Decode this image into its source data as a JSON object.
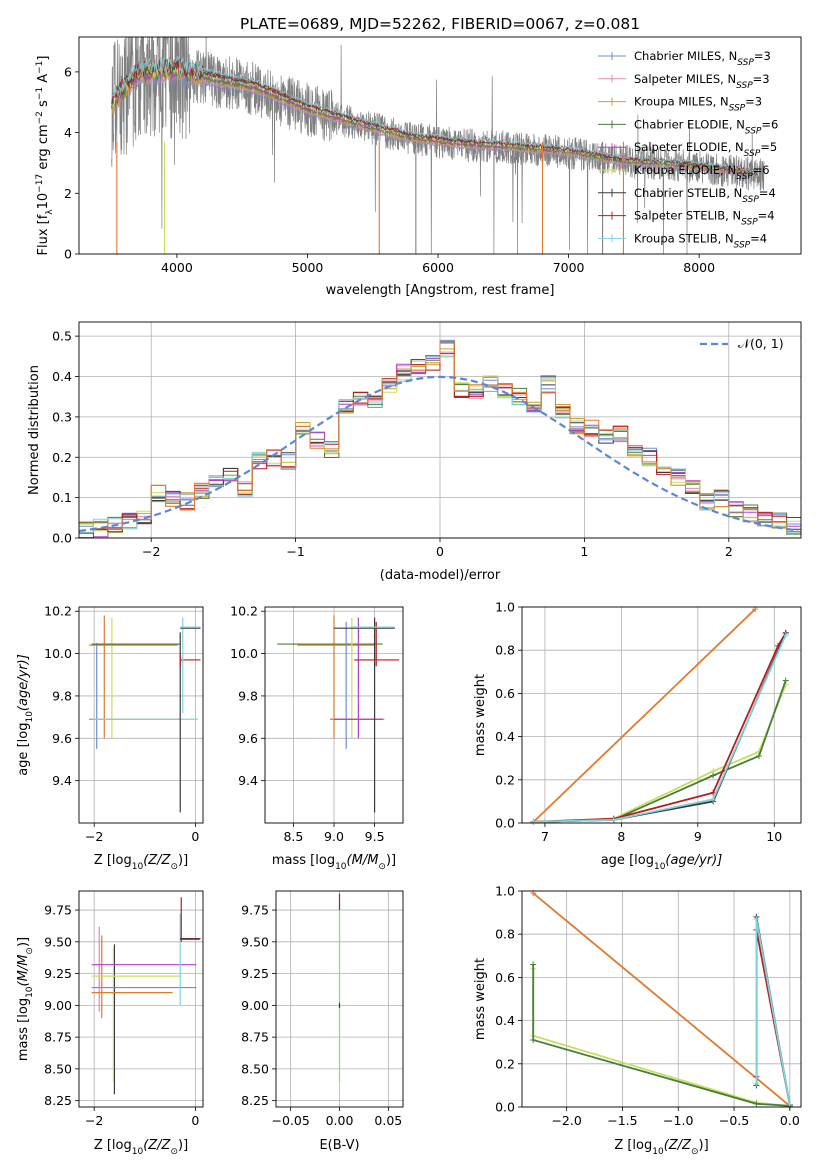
{
  "title": "PLATE=0689, MJD=52262, FIBERID=0067, z=0.081",
  "chart_data": [
    {
      "id": "spectrum",
      "type": "line",
      "xlabel": "wavelength [Angstrom, rest frame]",
      "ylabel_main": "Flux [f",
      "ylabel_sub": "λ",
      "ylabel_rest": "10",
      "ylabel_exp1": "−17",
      "ylabel_unit": " erg cm",
      "ylabel_exp2": "−2",
      "ylabel_s": " s",
      "ylabel_exp3": "−1",
      "ylabel_A": " A",
      "ylabel_exp4": "−1",
      "ylabel_end": "]",
      "xlim": [
        3250,
        8780
      ],
      "ylim": [
        0,
        7.15
      ],
      "xticks": [
        4000,
        5000,
        6000,
        7000,
        8000
      ],
      "yticks": [
        0,
        2,
        4,
        6
      ],
      "grid": false,
      "data_trend": {
        "x": [
          3500,
          3700,
          4000,
          4300,
          4600,
          5000,
          5400,
          5800,
          6200,
          6600,
          7000,
          7400,
          7800,
          8200,
          8500
        ],
        "y": [
          4.9,
          5.9,
          6.0,
          5.7,
          5.45,
          4.75,
          4.25,
          3.8,
          3.6,
          3.5,
          3.35,
          3.05,
          2.95,
          2.75,
          2.6
        ]
      },
      "series": [
        {
          "name": "Chabrier MILES",
          "nssp": "3",
          "color": "#6a8fd6"
        },
        {
          "name": "Salpeter MILES",
          "nssp": "3",
          "color": "#e488b0"
        },
        {
          "name": "Kroupa MILES",
          "nssp": "3",
          "color": "#c9a227"
        },
        {
          "name": "Chabrier ELODIE",
          "nssp": "6",
          "color": "#4a7d3d"
        },
        {
          "name": "Salpeter ELODIE",
          "nssp": "5",
          "color": "#b03fc8"
        },
        {
          "name": "Kroupa ELODIE",
          "nssp": "6",
          "color": "#c6e05a"
        },
        {
          "name": "Chabrier STELIB",
          "nssp": "4",
          "color": "#3a3a3a"
        },
        {
          "name": "Salpeter STELIB",
          "nssp": "4",
          "color": "#b81c1c"
        },
        {
          "name": "Kroupa STELIB",
          "nssp": "4",
          "color": "#7fd3dd"
        }
      ],
      "legend_position": "top-right",
      "nssp_prefix": "N",
      "nssp_sub": "SSP"
    },
    {
      "id": "residuals",
      "type": "line",
      "xlabel": "(data-model)/error",
      "ylabel": "Normed distribution",
      "xlim": [
        -2.5,
        2.5
      ],
      "ylim": [
        0,
        0.535
      ],
      "xticks": [
        -2,
        -1,
        0,
        1,
        2
      ],
      "xticklabels": [
        "−2",
        "−1",
        "0",
        "1",
        "2"
      ],
      "yticks": [
        0.0,
        0.1,
        0.2,
        0.3,
        0.4,
        0.5
      ],
      "yticklabels": [
        "0.0",
        "0.1",
        "0.2",
        "0.3",
        "0.4",
        "0.5"
      ],
      "grid": true,
      "legend_label": "𝒩(0, 1)",
      "legend_position": "top-right",
      "bin_edges": [
        -2.5,
        -2.4,
        -2.3,
        -2.2,
        -2.1,
        -2.0,
        -1.9,
        -1.8,
        -1.7,
        -1.6,
        -1.5,
        -1.4,
        -1.3,
        -1.2,
        -1.1,
        -1.0,
        -0.9,
        -0.8,
        -0.7,
        -0.6,
        -0.5,
        -0.4,
        -0.3,
        -0.2,
        -0.1,
        0.0,
        0.1,
        0.2,
        0.3,
        0.4,
        0.5,
        0.6,
        0.7,
        0.8,
        0.9,
        1.0,
        1.1,
        1.2,
        1.3,
        1.4,
        1.5,
        1.6,
        1.7,
        1.8,
        1.9,
        2.0,
        2.1,
        2.2,
        2.3,
        2.4,
        2.5
      ],
      "hist_base": [
        0.018,
        0.025,
        0.035,
        0.045,
        0.05,
        0.11,
        0.1,
        0.09,
        0.12,
        0.14,
        0.15,
        0.12,
        0.19,
        0.2,
        0.19,
        0.27,
        0.24,
        0.22,
        0.33,
        0.35,
        0.33,
        0.38,
        0.41,
        0.42,
        0.43,
        0.47,
        0.37,
        0.36,
        0.38,
        0.36,
        0.35,
        0.33,
        0.38,
        0.32,
        0.28,
        0.27,
        0.25,
        0.26,
        0.21,
        0.2,
        0.16,
        0.15,
        0.13,
        0.09,
        0.1,
        0.07,
        0.06,
        0.05,
        0.04,
        0.03
      ]
    },
    {
      "id": "age-vs-Z",
      "type": "scatter",
      "xlabel": "Z [log",
      "xlabel_sub": "10",
      "xlabel_rest": "(Z/Z",
      "xlabel_sun": "⊙",
      "xlabel_end": ")]",
      "ylabel": "age  [log",
      "ylabel_sub": "10",
      "ylabel_rest": "(age/yr)]",
      "xlim": [
        -2.3,
        0.15
      ],
      "ylim": [
        9.2,
        10.22
      ],
      "xticks": [
        -2,
        0
      ],
      "xticklabels": [
        "−2",
        "0"
      ],
      "yticks": [
        9.4,
        9.6,
        9.8,
        10.0,
        10.2
      ],
      "yticklabels": [
        "9.4",
        "9.6",
        "9.8",
        "10.0",
        "10.2"
      ],
      "grid": true
    },
    {
      "id": "age-vs-mass",
      "type": "scatter",
      "xlabel": "mass [log",
      "xlabel_sub": "10",
      "xlabel_rest": "(M/M",
      "xlabel_sun": "⊙",
      "xlabel_end": ")]",
      "xlim": [
        8.15,
        9.85
      ],
      "ylim": [
        9.2,
        10.22
      ],
      "xticks": [
        8.5,
        9.0,
        9.5
      ],
      "xticklabels": [
        "8.5",
        "9.0",
        "9.5"
      ],
      "yticks": [
        9.4,
        9.6,
        9.8,
        10.0,
        10.2
      ],
      "yticklabels": [
        "9.4",
        "9.6",
        "9.8",
        "10.0",
        "10.2"
      ],
      "grid": true
    },
    {
      "id": "massweight-vs-age",
      "type": "line",
      "xlabel": "age  [log",
      "xlabel_sub": "10",
      "xlabel_rest": "(age/yr)]",
      "ylabel": "mass weight",
      "xlim": [
        6.7,
        10.35
      ],
      "ylim": [
        0,
        1.0
      ],
      "xticks": [
        7,
        8,
        9,
        10
      ],
      "xticklabels": [
        "7",
        "8",
        "9",
        "10"
      ],
      "yticks": [
        0.0,
        0.2,
        0.4,
        0.6,
        0.8,
        1.0
      ],
      "yticklabels": [
        "0.0",
        "0.2",
        "0.4",
        "0.6",
        "0.8",
        "1.0"
      ],
      "grid": true,
      "lines": [
        {
          "color": "#e07a2e",
          "x": [
            6.85,
            9.75
          ],
          "y": [
            0.005,
            0.99
          ]
        },
        {
          "color": "#c6e05a",
          "x": [
            6.85,
            7.9,
            9.2,
            9.8,
            10.15
          ],
          "y": [
            0.005,
            0.02,
            0.24,
            0.33,
            0.64
          ]
        },
        {
          "color": "#4a7d3d",
          "x": [
            6.85,
            7.9,
            9.2,
            9.8,
            10.15
          ],
          "y": [
            0.005,
            0.015,
            0.22,
            0.31,
            0.66
          ]
        },
        {
          "color": "#b81c1c",
          "x": [
            6.85,
            7.9,
            9.2,
            10.05,
            10.15
          ],
          "y": [
            0.005,
            0.02,
            0.14,
            0.82,
            0.88
          ]
        },
        {
          "color": "#3a3a3a",
          "x": [
            6.85,
            7.9,
            9.2,
            10.15
          ],
          "y": [
            0.005,
            0.015,
            0.1,
            0.88
          ]
        },
        {
          "color": "#7fd3dd",
          "x": [
            6.85,
            7.9,
            9.2,
            10.15
          ],
          "y": [
            0.005,
            0.015,
            0.11,
            0.87
          ]
        }
      ]
    },
    {
      "id": "mass-vs-Z",
      "type": "scatter",
      "xlabel": "Z [log",
      "xlabel_sub": "10",
      "xlabel_rest": "(Z/Z",
      "xlabel_sun": "⊙",
      "xlabel_end": ")]",
      "ylabel": "mass [log",
      "ylabel_sub": "10",
      "ylabel_rest": "(M/M",
      "ylabel_sun": "⊙",
      "ylabel_end": ")]",
      "xlim": [
        -2.3,
        0.15
      ],
      "ylim": [
        8.2,
        9.9
      ],
      "xticks": [
        -2,
        0
      ],
      "xticklabels": [
        "−2",
        "0"
      ],
      "yticks": [
        8.25,
        8.5,
        8.75,
        9.0,
        9.25,
        9.5,
        9.75
      ],
      "yticklabels": [
        "8.25",
        "8.50",
        "8.75",
        "9.00",
        "9.25",
        "9.50",
        "9.75"
      ],
      "grid": true
    },
    {
      "id": "mass-vs-EBV",
      "type": "scatter",
      "xlabel": "E(B-V)",
      "xlim": [
        -0.065,
        0.065
      ],
      "ylim": [
        8.2,
        9.9
      ],
      "xticks": [
        -0.05,
        0.0,
        0.05
      ],
      "xticklabels": [
        "−0.05",
        "0.00",
        "0.05"
      ],
      "yticks": [
        8.25,
        8.5,
        8.75,
        9.0,
        9.25,
        9.5,
        9.75
      ],
      "yticklabels": [
        "8.25",
        "8.50",
        "8.75",
        "9.00",
        "9.25",
        "9.50",
        "9.75"
      ],
      "grid": true
    },
    {
      "id": "massweight-vs-Z",
      "type": "line",
      "xlabel": "Z [log",
      "xlabel_sub": "10",
      "xlabel_rest": "(Z/Z",
      "xlabel_sun": "⊙",
      "xlabel_end": ")]",
      "ylabel": "mass weight",
      "xlim": [
        -2.4,
        0.1
      ],
      "ylim": [
        0,
        1.0
      ],
      "xticks": [
        -2.0,
        -1.5,
        -1.0,
        -0.5,
        0.0
      ],
      "xticklabels": [
        "−2.0",
        "−1.5",
        "−1.0",
        "−0.5",
        "0.0"
      ],
      "yticks": [
        0.0,
        0.2,
        0.4,
        0.6,
        0.8,
        1.0
      ],
      "yticklabels": [
        "0.0",
        "0.2",
        "0.4",
        "0.6",
        "0.8",
        "1.0"
      ],
      "grid": true,
      "lines": [
        {
          "color": "#e07a2e",
          "x": [
            -2.3,
            0.0
          ],
          "y": [
            0.99,
            0.005
          ]
        },
        {
          "color": "#c6e05a",
          "x": [
            -2.3,
            -2.3,
            -0.3,
            0.0
          ],
          "y": [
            0.64,
            0.33,
            0.02,
            0.005
          ]
        },
        {
          "color": "#4a7d3d",
          "x": [
            -2.3,
            -2.3,
            -0.3,
            0.0
          ],
          "y": [
            0.66,
            0.31,
            0.015,
            0.005
          ]
        },
        {
          "color": "#b81c1c",
          "x": [
            -0.3,
            -0.3,
            0.0
          ],
          "y": [
            0.14,
            0.82,
            0.01
          ]
        },
        {
          "color": "#3a3a3a",
          "x": [
            -0.3,
            -0.3,
            0.0
          ],
          "y": [
            0.1,
            0.88,
            0.01
          ]
        },
        {
          "color": "#7fd3dd",
          "x": [
            -0.3,
            -0.3,
            0.0
          ],
          "y": [
            0.11,
            0.87,
            0.01
          ]
        }
      ]
    }
  ]
}
